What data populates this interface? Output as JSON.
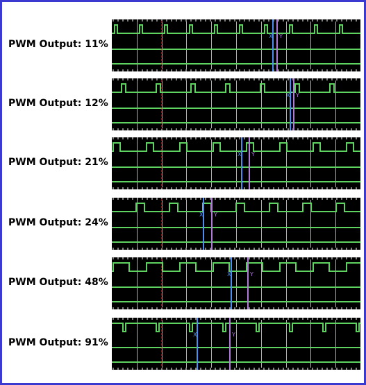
{
  "panels": [
    {
      "label": "PWM Output: 11%",
      "duty": 0.11,
      "cursor_x": "X",
      "cursor_y": "Y"
    },
    {
      "label": "PWM Output: 12%",
      "duty": 0.12,
      "cursor_x": "X",
      "cursor_y": "Y"
    },
    {
      "label": "PWM Output: 21%",
      "duty": 0.21,
      "cursor_x": "X",
      "cursor_y": "Y"
    },
    {
      "label": "PWM Output: 24%",
      "duty": 0.24,
      "cursor_x": "X",
      "cursor_y": "Y"
    },
    {
      "label": "PWM Output: 48%",
      "duty": 0.48,
      "cursor_x": "X",
      "cursor_y": "Y"
    },
    {
      "label": "PWM Output: 91%",
      "duty": 0.91,
      "cursor_x": "X",
      "cursor_y": "Y"
    }
  ],
  "colors": {
    "background": "#000000",
    "trace": "#5fd35f",
    "grid": "#ffffff",
    "trigger": "#e03030",
    "cursor_x": "#4a8ff0",
    "cursor_y": "#b07ad8",
    "frame": "#3a3ad0"
  }
}
